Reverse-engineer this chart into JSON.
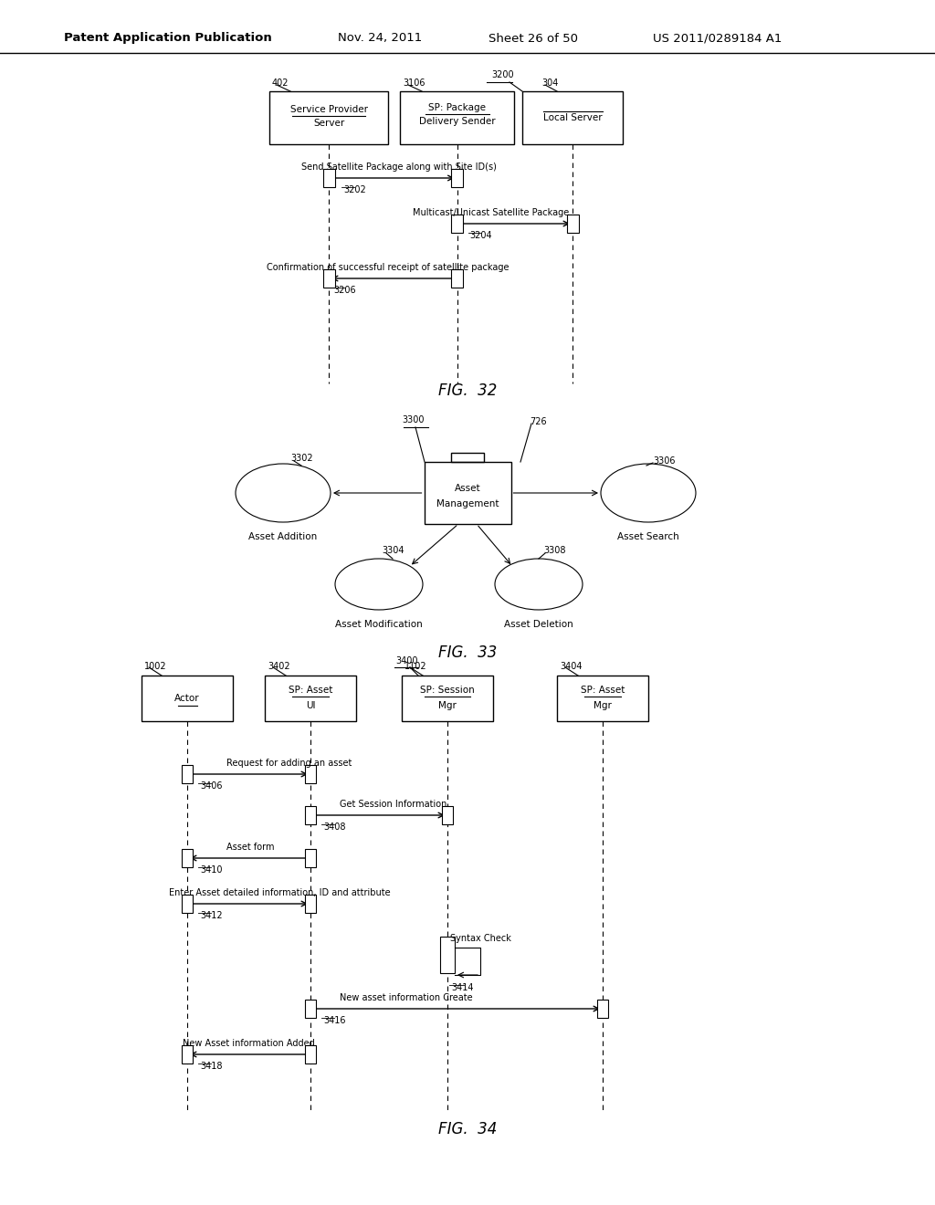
{
  "bg_color": "#ffffff",
  "header_text": "Patent Application Publication",
  "header_date": "Nov. 24, 2011",
  "header_sheet": "Sheet 26 of 50",
  "header_patent": "US 2011/0289184 A1"
}
